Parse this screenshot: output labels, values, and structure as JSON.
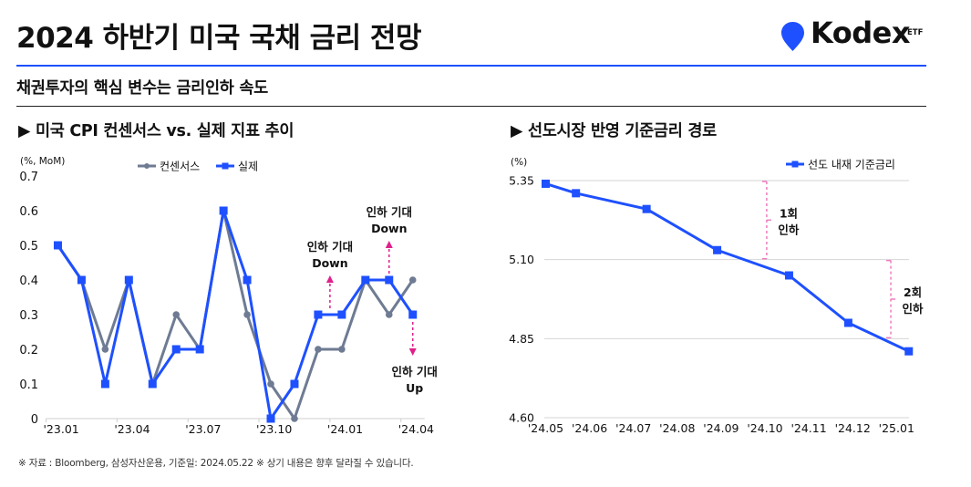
{
  "header": {
    "title": "2024 하반기 미국 국채 금리 전망",
    "subtitle": "채권투자의 핵심 변수는 금리인하 속도",
    "logo": {
      "name": "Kodex",
      "suffix": "ETF",
      "icon": "location-pin-icon"
    }
  },
  "colors": {
    "accent": "#1e50ff",
    "consensus": "#6e7b93",
    "annotation": "#e0208a",
    "bracket": "#f07bbf",
    "grid": "#d6d6d6",
    "text": "#111111"
  },
  "chart_data": [
    {
      "type": "line",
      "title": "▶ 미국 CPI 컨센서스 vs. 실제 지표 추이",
      "ylabel": "(%, MoM)",
      "xlabel": "",
      "ylim": [
        0,
        0.7
      ],
      "yticks": [
        0,
        0.1,
        0.2,
        0.3,
        0.4,
        0.5,
        0.6,
        0.7
      ],
      "ytick_labels": [
        "0",
        "0.1",
        "0.2",
        "0.3",
        "0.4",
        "0.5",
        "0.6",
        "0.7"
      ],
      "x_count": 16,
      "xtick_indices": [
        0,
        3,
        6,
        9,
        12,
        15
      ],
      "xtick_labels": [
        "'23.01",
        "'23.04",
        "'23.07",
        "'23.10",
        "'24.01",
        "'24.04"
      ],
      "grid": false,
      "legend": "top-center",
      "series": [
        {
          "name": "컨센서스",
          "marker": "circle",
          "color": "#6e7b93",
          "values": [
            0.5,
            0.4,
            0.2,
            0.4,
            0.1,
            0.3,
            0.2,
            0.6,
            0.3,
            0.1,
            0.0,
            0.2,
            0.2,
            0.4,
            0.3,
            0.4
          ]
        },
        {
          "name": "실제",
          "marker": "square",
          "color": "#1e50ff",
          "values": [
            0.5,
            0.4,
            0.1,
            0.4,
            0.1,
            0.2,
            0.2,
            0.6,
            0.4,
            0.0,
            0.1,
            0.3,
            0.3,
            0.4,
            0.4,
            0.3
          ]
        }
      ],
      "annotations": [
        {
          "lines": [
            "인하 기대",
            "Down"
          ],
          "at_index": 11.5,
          "anchor_value": 0.3,
          "direction": "up"
        },
        {
          "lines": [
            "인하 기대",
            "Down"
          ],
          "at_index": 14,
          "anchor_value": 0.4,
          "direction": "up"
        },
        {
          "lines": [
            "인하 기대",
            "Up"
          ],
          "at_index": 15,
          "anchor_value": 0.3,
          "direction": "down"
        }
      ]
    },
    {
      "type": "line",
      "title": "▶ 선도시장 반영 기준금리 경로",
      "ylabel": "(%)",
      "xlabel": "",
      "ylim": [
        4.6,
        5.35
      ],
      "yticks": [
        4.6,
        4.85,
        5.1,
        5.35
      ],
      "ytick_labels": [
        "4.60",
        "4.85",
        "5.10",
        "5.35"
      ],
      "xtick_labels": [
        "'24.05",
        "'24.06",
        "'24.07",
        "'24.08",
        "'24.09",
        "'24.10",
        "'24.11",
        "'24.12",
        "'25.01"
      ],
      "x_unit": "months since '24.05",
      "grid": true,
      "legend": "top-right",
      "series": [
        {
          "name": "선도 내재 기준금리",
          "marker": "square",
          "color": "#1e50ff",
          "x": [
            0,
            0.69,
            2.3,
            3.91,
            5.55,
            6.9,
            8.28
          ],
          "values": [
            5.34,
            5.31,
            5.26,
            5.13,
            5.05,
            4.9,
            4.81
          ]
        }
      ],
      "annotations": [
        {
          "lines": [
            "1회",
            "인하"
          ],
          "at_x": 5.04,
          "from": 5.35,
          "to": 5.1
        },
        {
          "lines": [
            "2회",
            "인하"
          ],
          "at_x": 7.87,
          "from": 5.1,
          "to": 4.85
        }
      ]
    }
  ],
  "footnote": "※ 자료 : Bloomberg, 삼성자산운용, 기준일: 2024.05.22 ※ 상기 내용은 향후 달라질 수 있습니다."
}
